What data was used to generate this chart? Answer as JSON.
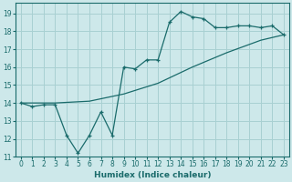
{
  "title": "",
  "xlabel": "Humidex (Indice chaleur)",
  "bg_color": "#cde8ea",
  "grid_color": "#a8d0d2",
  "line_color": "#1a6b6b",
  "xlim": [
    -0.5,
    23.5
  ],
  "ylim": [
    11.0,
    19.6
  ],
  "xticks": [
    0,
    1,
    2,
    3,
    4,
    5,
    6,
    7,
    8,
    9,
    10,
    11,
    12,
    13,
    14,
    15,
    16,
    17,
    18,
    19,
    20,
    21,
    22,
    23
  ],
  "yticks": [
    11,
    12,
    13,
    14,
    15,
    16,
    17,
    18,
    19
  ],
  "upper_x": [
    0,
    1,
    2,
    3,
    4,
    5,
    6,
    7,
    8,
    9,
    10,
    11,
    12,
    13,
    14,
    15,
    16,
    17,
    18,
    19,
    20,
    21,
    22,
    23
  ],
  "upper_y": [
    14.0,
    13.8,
    13.9,
    13.9,
    12.2,
    11.2,
    12.2,
    13.5,
    12.2,
    16.0,
    15.9,
    16.4,
    16.4,
    18.5,
    19.1,
    18.8,
    18.7,
    18.2,
    18.2,
    18.3,
    18.3,
    18.2,
    18.3,
    17.8
  ],
  "lower_x": [
    0,
    3,
    6,
    9,
    12,
    15,
    18,
    21,
    23
  ],
  "lower_y": [
    14.0,
    14.0,
    14.1,
    14.5,
    15.1,
    16.0,
    16.8,
    17.5,
    17.8
  ]
}
